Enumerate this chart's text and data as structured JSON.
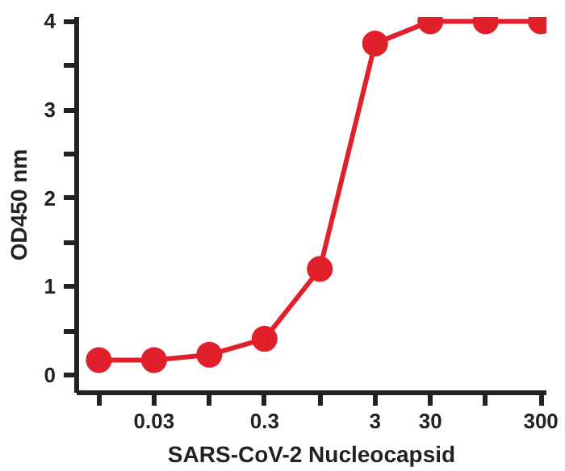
{
  "chart_data": {
    "type": "line",
    "xlabel": "SARS-CoV-2 Nucleocapsid",
    "ylabel": "OD450 nm",
    "categories": [
      null,
      "0.03",
      null,
      "0.3",
      null,
      "3",
      "30",
      null,
      "300"
    ],
    "series": [
      {
        "color": "#e0202a",
        "values": [
          0.17,
          0.17,
          0.23,
          0.41,
          1.2,
          3.75,
          4.0,
          4.0,
          4.0
        ]
      }
    ],
    "ylim": [
      -0.2,
      4.05
    ],
    "yticks": [
      0,
      {
        "value": 0.5,
        "label": null
      },
      1,
      {
        "value": 1.5,
        "label": null
      },
      2,
      {
        "value": 2.5,
        "label": null
      },
      3,
      {
        "value": 3.5,
        "label": null
      },
      4
    ],
    "marker": "circle",
    "line_style": "solid",
    "grid": false
  }
}
